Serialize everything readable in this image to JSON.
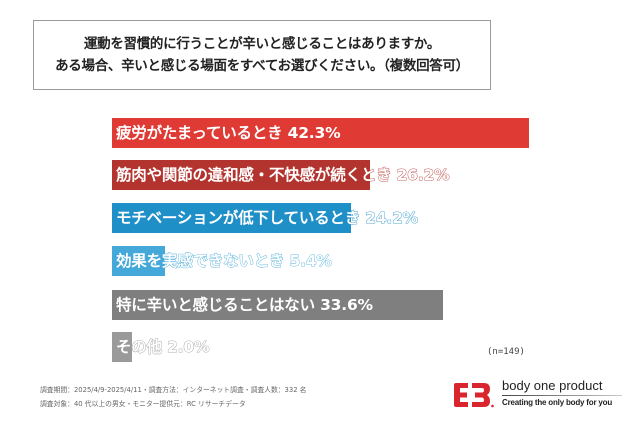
{
  "question": {
    "line1": "運動を習慣的に行うことが辛いと感じることはありますか。",
    "line2": "ある場合、辛いと感じる場面をすべてお選びください。（複数回答可）"
  },
  "chart_data": {
    "type": "bar",
    "orientation": "horizontal",
    "title": "運動を習慣的に行うことが辛いと感じることはありますか。ある場合、辛いと感じる場面をすべてお選びください。（複数回答可）",
    "categories": [
      "疲労がたまっているとき",
      "筋肉や関節の違和感・不快感が続くとき",
      "モチベーションが低下しているとき",
      "効果を実感できないとき",
      "特に辛いと感じることはない",
      "その他"
    ],
    "values": [
      42.3,
      26.2,
      24.2,
      5.4,
      33.6,
      2.0
    ],
    "unit": "%",
    "colors": [
      "#e03a35",
      "#b3342f",
      "#1f8fc8",
      "#44a8d8",
      "#7f7f7f",
      "#9a9a9a"
    ],
    "sample_size": "(n=149)",
    "xlabel": "",
    "ylabel": "",
    "grid": false,
    "legend": "none"
  },
  "bars": [
    {
      "label": "疲労がたまっているとき  42.3%",
      "value": 42.3,
      "color": "#e03a35"
    },
    {
      "label": "筋肉や関節の違和感・不快感が続くとき  26.2%",
      "value": 26.2,
      "color": "#b3342f"
    },
    {
      "label": "モチベーションが低下しているとき  24.2%",
      "value": 24.2,
      "color": "#1f8fc8"
    },
    {
      "label": "効果を実感できないとき  5.4%",
      "value": 5.4,
      "color": "#44a8d8"
    },
    {
      "label": "特に辛いと感じることはない  33.6%",
      "value": 33.6,
      "color": "#7f7f7f"
    },
    {
      "label": "その他  2.0%",
      "value": 2.0,
      "color": "#9a9a9a"
    }
  ],
  "sample": "(n=149)",
  "footer": {
    "line1": "調査期間：2025/4/9-2025/4/11・調査方法：インターネット調査・調査人数：332 名",
    "line2": "調査対象：40 代以上の男女・モニター提供元：RC リサーチデータ"
  },
  "brand": {
    "name": "body one product",
    "tagline": "Creating the only body for you",
    "color": "#d9262e"
  }
}
